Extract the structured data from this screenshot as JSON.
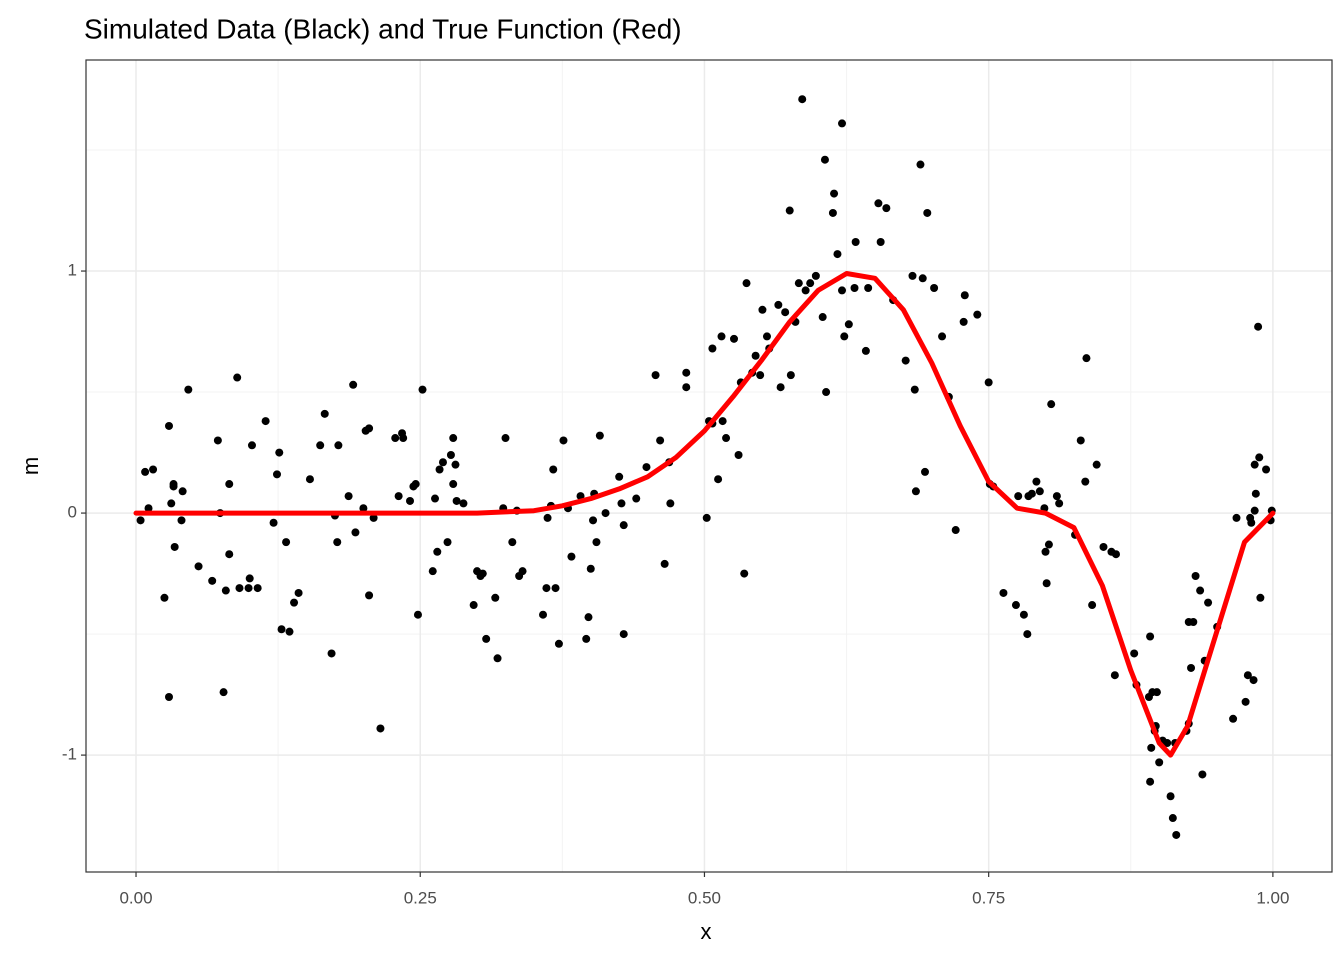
{
  "chart_data": {
    "type": "scatter",
    "title": "Simulated Data (Black) and True Function (Red)",
    "x_label": "x",
    "y_label": "m",
    "xlim": [
      -0.044,
      1.052
    ],
    "ylim": [
      -1.483,
      1.872
    ],
    "xticks": [
      {
        "value": 0,
        "label": "0.00"
      },
      0.25,
      {
        "value": 0.5,
        "label": "0.50"
      },
      0.75,
      {
        "value": 1,
        "label": "1.00"
      }
    ],
    "yticks": [
      -1,
      0,
      1
    ],
    "grid": true,
    "points": {
      "color": "#000000",
      "x": [
        0.004,
        0.008,
        0.011,
        0.015,
        0.025,
        0.029,
        0.029,
        0.031,
        0.033,
        0.033,
        0.034,
        0.04,
        0.041,
        0.046,
        0.055,
        0.067,
        0.072,
        0.074,
        0.077,
        0.079,
        0.082,
        0.082,
        0.089,
        0.091,
        0.099,
        0.1,
        0.102,
        0.107,
        0.114,
        0.121,
        0.124,
        0.126,
        0.128,
        0.132,
        0.135,
        0.139,
        0.143,
        0.153,
        0.162,
        0.166,
        0.172,
        0.175,
        0.177,
        0.178,
        0.187,
        0.191,
        0.193,
        0.2,
        0.202,
        0.205,
        0.205,
        0.209,
        0.215,
        0.228,
        0.231,
        0.234,
        0.235,
        0.241,
        0.244,
        0.246,
        0.248,
        0.252,
        0.261,
        0.263,
        0.265,
        0.267,
        0.27,
        0.274,
        0.277,
        0.279,
        0.281,
        0.279,
        0.282,
        0.288,
        0.297,
        0.3,
        0.305,
        0.308,
        0.303,
        0.316,
        0.318,
        0.325,
        0.323,
        0.331,
        0.335,
        0.337,
        0.34,
        0.358,
        0.362,
        0.361,
        0.365,
        0.367,
        0.369,
        0.372,
        0.376,
        0.38,
        0.383,
        0.391,
        0.396,
        0.398,
        0.4,
        0.402,
        0.403,
        0.405,
        0.408,
        0.413,
        0.425,
        0.427,
        0.429,
        0.429,
        0.44,
        0.449,
        0.457,
        0.461,
        0.465,
        0.47,
        0.469,
        0.484,
        0.484,
        0.502,
        0.504,
        0.507,
        0.507,
        0.512,
        0.515,
        0.516,
        0.519,
        0.526,
        0.53,
        0.532,
        0.535,
        0.537,
        0.542,
        0.545,
        0.549,
        0.551,
        0.555,
        0.557,
        0.565,
        0.567,
        0.571,
        0.575,
        0.576,
        0.58,
        0.583,
        0.586,
        0.589,
        0.593,
        0.598,
        0.604,
        0.606,
        0.607,
        0.613,
        0.614,
        0.617,
        0.621,
        0.621,
        0.623,
        0.627,
        0.632,
        0.633,
        0.642,
        0.644,
        0.653,
        0.655,
        0.66,
        0.666,
        0.677,
        0.683,
        0.685,
        0.686,
        0.69,
        0.692,
        0.694,
        0.696,
        0.702,
        0.709,
        0.715,
        0.721,
        0.728,
        0.729,
        0.74,
        0.75,
        0.751,
        0.754,
        0.763,
        0.774,
        0.776,
        0.781,
        0.784,
        0.785,
        0.788,
        0.792,
        0.795,
        0.799,
        0.8,
        0.801,
        0.803,
        0.805,
        0.81,
        0.812,
        0.826,
        0.831,
        0.835,
        0.836,
        0.841,
        0.845,
        0.851,
        0.858,
        0.862,
        0.861,
        0.878,
        0.88,
        0.892,
        0.891,
        0.892,
        0.894,
        0.893,
        0.896,
        0.897,
        0.898,
        0.9,
        0.903,
        0.907,
        0.91,
        0.912,
        0.915,
        0.914,
        0.924,
        0.926,
        0.926,
        0.928,
        0.93,
        0.932,
        0.936,
        0.938,
        0.943,
        0.94,
        0.951,
        0.965,
        0.968,
        0.976,
        0.978,
        0.98,
        0.983,
        0.984,
        0.984,
        0.985,
        0.987,
        0.988,
        0.989,
        0.994,
        0.998,
        0.999,
        0.981
      ],
      "y": [
        -0.03,
        0.17,
        0.02,
        0.18,
        -0.35,
        0.36,
        -0.76,
        0.04,
        0.11,
        0.12,
        -0.14,
        -0.03,
        0.09,
        0.51,
        -0.22,
        -0.28,
        0.3,
        0.0,
        -0.74,
        -0.32,
        -0.17,
        0.12,
        0.56,
        -0.31,
        -0.31,
        -0.27,
        0.28,
        -0.31,
        0.38,
        -0.04,
        0.16,
        0.25,
        -0.48,
        -0.12,
        -0.49,
        -0.37,
        -0.33,
        0.14,
        0.28,
        0.41,
        -0.58,
        -0.01,
        -0.12,
        0.28,
        0.07,
        0.53,
        -0.08,
        0.02,
        0.34,
        0.35,
        -0.34,
        -0.02,
        -0.89,
        0.31,
        0.07,
        0.33,
        0.31,
        0.05,
        0.11,
        0.12,
        -0.42,
        0.51,
        -0.24,
        0.06,
        -0.16,
        0.18,
        0.21,
        -0.12,
        0.24,
        0.31,
        0.2,
        0.12,
        0.05,
        0.04,
        -0.38,
        -0.24,
        -0.25,
        -0.52,
        -0.26,
        -0.35,
        -0.6,
        0.31,
        0.02,
        -0.12,
        0.01,
        -0.26,
        -0.24,
        -0.42,
        -0.02,
        -0.31,
        0.03,
        0.18,
        -0.31,
        -0.54,
        0.3,
        0.02,
        -0.18,
        0.07,
        -0.52,
        -0.43,
        -0.23,
        -0.03,
        0.08,
        -0.12,
        0.32,
        0.0,
        0.15,
        0.04,
        -0.05,
        -0.5,
        0.06,
        0.19,
        0.57,
        0.3,
        -0.21,
        0.04,
        0.21,
        0.58,
        0.52,
        -0.02,
        0.38,
        0.37,
        0.68,
        0.14,
        0.73,
        0.38,
        0.31,
        0.72,
        0.24,
        0.54,
        -0.25,
        0.95,
        0.58,
        0.65,
        0.57,
        0.84,
        0.73,
        0.68,
        0.86,
        0.52,
        0.83,
        1.25,
        0.57,
        0.79,
        0.95,
        1.71,
        0.92,
        0.95,
        0.98,
        0.81,
        1.46,
        0.5,
        1.24,
        1.32,
        1.07,
        0.92,
        1.61,
        0.73,
        0.78,
        0.93,
        1.12,
        0.67,
        0.93,
        1.28,
        1.12,
        1.26,
        0.88,
        0.63,
        0.98,
        0.51,
        0.09,
        1.44,
        0.97,
        0.17,
        1.24,
        0.93,
        0.73,
        0.48,
        -0.07,
        0.79,
        0.9,
        0.82,
        0.54,
        0.12,
        0.11,
        -0.33,
        -0.38,
        0.07,
        -0.42,
        -0.5,
        0.07,
        0.08,
        0.13,
        0.09,
        0.02,
        -0.16,
        -0.29,
        -0.13,
        0.45,
        0.07,
        0.04,
        -0.09,
        0.3,
        0.13,
        0.64,
        -0.38,
        0.2,
        -0.14,
        -0.16,
        -0.17,
        -0.67,
        -0.58,
        -0.71,
        -0.51,
        -0.76,
        -1.11,
        -0.74,
        -0.97,
        -0.9,
        -0.88,
        -0.74,
        -1.03,
        -0.94,
        -0.95,
        -1.17,
        -1.26,
        -1.33,
        -0.95,
        -0.9,
        -0.87,
        -0.45,
        -0.64,
        -0.45,
        -0.26,
        -0.32,
        -1.08,
        -0.37,
        -0.61,
        -0.47,
        -0.85,
        -0.02,
        -0.78,
        -0.67,
        -0.02,
        -0.69,
        0.01,
        0.2,
        0.08,
        0.77,
        0.23,
        -0.35,
        0.18,
        -0.03,
        0.01,
        -0.04
      ]
    },
    "line": {
      "color": "#ff0000",
      "x": [
        0,
        0.025,
        0.05,
        0.075,
        0.1,
        0.125,
        0.15,
        0.175,
        0.2,
        0.225,
        0.25,
        0.275,
        0.3,
        0.325,
        0.35,
        0.375,
        0.4,
        0.425,
        0.45,
        0.475,
        0.5,
        0.525,
        0.55,
        0.575,
        0.6,
        0.625,
        0.65,
        0.675,
        0.7,
        0.725,
        0.75,
        0.775,
        0.8,
        0.825,
        0.85,
        0.875,
        0.9,
        0.91,
        0.925,
        0.95,
        0.975,
        1.0
      ],
      "y": [
        0,
        0,
        0,
        0,
        0,
        0,
        0,
        0,
        0,
        0,
        0,
        0,
        0,
        0.005,
        0.01,
        0.03,
        0.06,
        0.1,
        0.15,
        0.23,
        0.34,
        0.48,
        0.63,
        0.79,
        0.92,
        0.99,
        0.97,
        0.84,
        0.62,
        0.36,
        0.13,
        0.02,
        0.0,
        -0.06,
        -0.3,
        -0.65,
        -0.95,
        -1.0,
        -0.88,
        -0.5,
        -0.12,
        0.0
      ]
    }
  }
}
